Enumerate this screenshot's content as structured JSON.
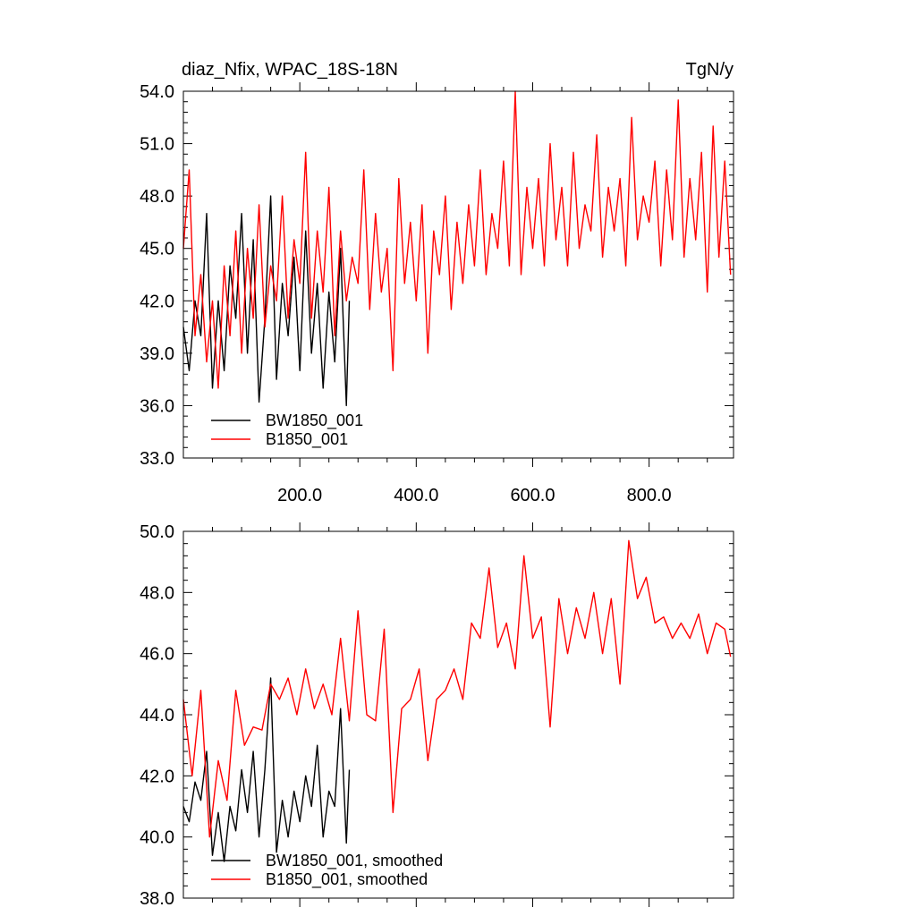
{
  "chart_data": [
    {
      "type": "line",
      "title": "diaz_Nfix, WPAC_18S-18N",
      "units": "TgN/y",
      "xlim": [
        0,
        945
      ],
      "ylim": [
        33,
        54
      ],
      "yticks": [
        "33.0",
        "36.0",
        "39.0",
        "42.0",
        "45.0",
        "48.0",
        "51.0",
        "54.0"
      ],
      "xticks": [
        "200.0",
        "400.0",
        "600.0",
        "800.0"
      ],
      "legend": [
        "BW1850_001",
        "B1850_001"
      ],
      "series": [
        {
          "name": "BW1850_001",
          "color": "#000000",
          "x": [
            0,
            10,
            20,
            30,
            40,
            50,
            60,
            70,
            80,
            90,
            100,
            110,
            120,
            130,
            140,
            150,
            160,
            170,
            180,
            190,
            200,
            210,
            220,
            230,
            240,
            250,
            260,
            270,
            280,
            285
          ],
          "y": [
            40.5,
            38.0,
            42.0,
            40.0,
            47.0,
            37.0,
            42.0,
            38.0,
            44.0,
            41.0,
            47.0,
            39.0,
            45.5,
            36.2,
            41.0,
            48.0,
            37.5,
            43.0,
            40.0,
            44.5,
            38.0,
            46.0,
            39.0,
            43.0,
            37.0,
            42.5,
            38.5,
            45.0,
            36.0,
            42.0
          ]
        },
        {
          "name": "B1850_001",
          "color": "#ff0000",
          "x": [
            0,
            10,
            20,
            30,
            40,
            50,
            60,
            70,
            80,
            90,
            100,
            110,
            120,
            130,
            140,
            150,
            160,
            170,
            180,
            190,
            200,
            210,
            220,
            230,
            240,
            250,
            260,
            270,
            280,
            290,
            300,
            310,
            320,
            330,
            340,
            350,
            360,
            370,
            380,
            390,
            400,
            410,
            420,
            430,
            440,
            450,
            460,
            470,
            480,
            490,
            500,
            510,
            520,
            530,
            540,
            550,
            560,
            570,
            580,
            590,
            600,
            610,
            620,
            630,
            640,
            650,
            660,
            670,
            680,
            690,
            700,
            710,
            720,
            730,
            740,
            750,
            760,
            770,
            780,
            790,
            800,
            810,
            820,
            830,
            840,
            850,
            860,
            870,
            880,
            890,
            900,
            910,
            920,
            930,
            940
          ],
          "y": [
            45.0,
            49.5,
            40.0,
            43.5,
            38.5,
            42.0,
            37.0,
            44.0,
            40.0,
            46.0,
            39.0,
            45.0,
            41.0,
            47.5,
            40.5,
            44.0,
            42.0,
            48.0,
            41.0,
            45.5,
            43.0,
            50.5,
            41.0,
            46.0,
            42.5,
            48.5,
            40.0,
            46.0,
            42.0,
            44.5,
            43.0,
            49.5,
            41.5,
            47.0,
            42.5,
            45.0,
            38.0,
            49.0,
            43.0,
            46.5,
            42.0,
            47.5,
            39.0,
            46.0,
            43.5,
            48.0,
            41.5,
            46.5,
            43.0,
            47.5,
            44.0,
            49.5,
            43.5,
            47.0,
            45.0,
            50.0,
            44.0,
            54.0,
            43.5,
            48.5,
            45.0,
            49.0,
            44.0,
            51.0,
            45.5,
            48.5,
            44.0,
            50.5,
            45.0,
            47.5,
            46.0,
            51.5,
            44.5,
            48.5,
            46.0,
            49.0,
            44.0,
            52.5,
            45.5,
            48.0,
            46.5,
            50.0,
            44.0,
            49.5,
            45.5,
            53.5,
            44.5,
            49.0,
            45.5,
            50.5,
            42.5,
            52.0,
            44.5,
            50.0,
            43.5
          ]
        }
      ]
    },
    {
      "type": "line",
      "title": "",
      "xlim": [
        0,
        945
      ],
      "ylim": [
        38,
        50
      ],
      "yticks": [
        "38.0",
        "40.0",
        "42.0",
        "44.0",
        "46.0",
        "48.0",
        "50.0"
      ],
      "legend": [
        "BW1850_001, smoothed",
        "B1850_001, smoothed"
      ],
      "series": [
        {
          "name": "BW1850_001, smoothed",
          "color": "#000000",
          "x": [
            0,
            10,
            20,
            30,
            40,
            50,
            60,
            70,
            80,
            90,
            100,
            110,
            120,
            130,
            140,
            150,
            160,
            170,
            180,
            190,
            200,
            210,
            220,
            230,
            240,
            250,
            260,
            270,
            280,
            285
          ],
          "y": [
            41.0,
            40.5,
            41.8,
            41.2,
            42.8,
            39.4,
            40.8,
            39.2,
            41.0,
            40.2,
            42.2,
            40.8,
            42.8,
            40.0,
            42.2,
            45.2,
            39.5,
            41.2,
            40.0,
            41.5,
            40.5,
            42.0,
            41.0,
            43.0,
            40.0,
            41.5,
            41.0,
            44.2,
            39.8,
            42.2
          ]
        },
        {
          "name": "B1850_001, smoothed",
          "color": "#ff0000",
          "x": [
            0,
            15,
            30,
            45,
            60,
            75,
            90,
            105,
            120,
            135,
            150,
            165,
            180,
            195,
            210,
            225,
            240,
            255,
            270,
            285,
            300,
            315,
            330,
            345,
            360,
            375,
            390,
            405,
            420,
            435,
            450,
            465,
            480,
            495,
            510,
            525,
            540,
            555,
            570,
            585,
            600,
            615,
            630,
            645,
            660,
            675,
            690,
            705,
            720,
            735,
            750,
            765,
            780,
            795,
            810,
            825,
            840,
            855,
            870,
            885,
            900,
            915,
            930,
            940
          ],
          "y": [
            44.5,
            42.0,
            44.8,
            40.0,
            42.5,
            41.2,
            44.8,
            43.0,
            43.6,
            43.5,
            45.0,
            44.5,
            45.2,
            44.0,
            45.5,
            44.2,
            45.0,
            44.0,
            46.5,
            43.8,
            47.4,
            44.0,
            43.8,
            46.8,
            40.8,
            44.2,
            44.5,
            45.5,
            42.5,
            44.5,
            44.8,
            45.5,
            44.5,
            47.0,
            46.5,
            48.8,
            46.2,
            47.0,
            45.5,
            49.2,
            46.5,
            47.2,
            43.6,
            47.8,
            46.0,
            47.5,
            46.5,
            48.0,
            46.0,
            47.8,
            45.0,
            49.7,
            47.8,
            48.5,
            47.0,
            47.2,
            46.5,
            47.0,
            46.5,
            47.3,
            46.0,
            47.0,
            46.8,
            45.9
          ]
        }
      ]
    }
  ]
}
